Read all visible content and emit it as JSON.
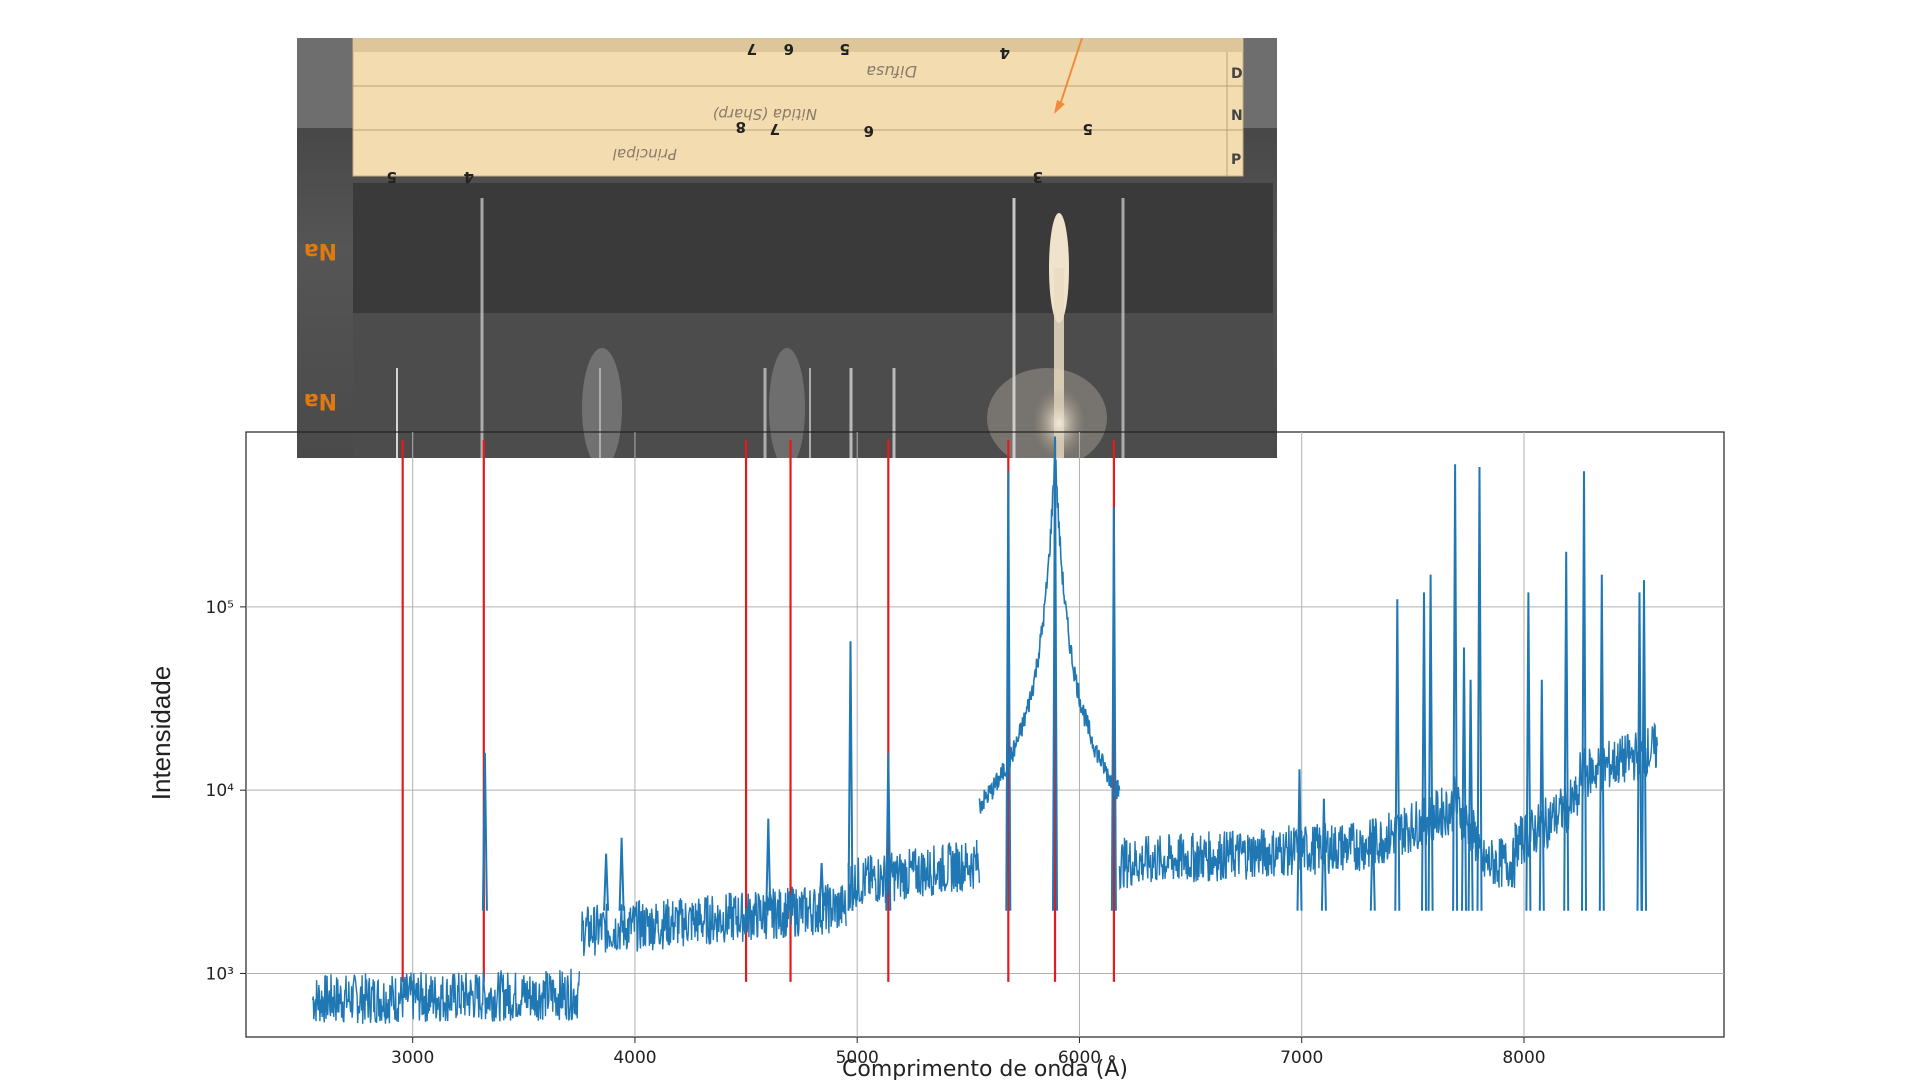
{
  "photo": {
    "plate_numbers": [
      "7",
      "6",
      "5",
      "4",
      "8",
      "7",
      "6",
      "5",
      "3",
      "5",
      "4"
    ],
    "row_letters": [
      "D",
      "N",
      "P"
    ],
    "element_labels": [
      "Na",
      "Na"
    ],
    "handwriting": [
      "Difusa",
      "Nitida (Sharp)",
      "Principal"
    ],
    "colors": {
      "plate": "#4a4a4a",
      "paper": "#f3dcb0",
      "label": "#e07a10",
      "arrow": "#f08a3c"
    }
  },
  "chart_data": {
    "type": "line",
    "title": "",
    "xlabel": "Comprimento de onda (Å)",
    "ylabel": "Intensidade",
    "xlim": [
      2250,
      8900
    ],
    "ylim": [
      450,
      900000
    ],
    "yscale": "log",
    "grid": true,
    "x_ticks": [
      3000,
      4000,
      5000,
      6000,
      7000,
      8000
    ],
    "x_tick_labels": [
      "3000",
      "4000",
      "5000",
      "6000",
      "7000",
      "8000"
    ],
    "y_ticks": [
      1000,
      10000,
      100000
    ],
    "y_tick_labels": [
      "10³",
      "10⁴",
      "10⁵"
    ],
    "series_color": "#1f77b4",
    "marker_line_color": "#e41a1c",
    "marker_lines": [
      2955,
      3320,
      4500,
      4700,
      5140,
      5680,
      5890,
      6155
    ],
    "baseline_segments": [
      {
        "x": [
          2550,
          3750
        ],
        "y": [
          720,
          770
        ]
      },
      {
        "x": [
          3760,
          4950
        ],
        "y": [
          1700,
          2300
        ]
      },
      {
        "x": [
          4960,
          5550
        ],
        "y": [
          3100,
          4000
        ]
      },
      {
        "x": [
          6180,
          7300
        ],
        "y": [
          4000,
          5000
        ]
      },
      {
        "x": [
          7300,
          7680
        ],
        "y": [
          5000,
          8000
        ]
      },
      {
        "x": [
          7680,
          7800
        ],
        "y": [
          9000,
          5000
        ]
      },
      {
        "x": [
          7800,
          7960
        ],
        "y": [
          4000,
          4000
        ]
      },
      {
        "x": [
          7960,
          8250
        ],
        "y": [
          5000,
          9000
        ]
      },
      {
        "x": [
          8250,
          8600
        ],
        "y": [
          12000,
          17000
        ]
      }
    ],
    "peaks": [
      {
        "x": 3325,
        "y": 16000
      },
      {
        "x": 3870,
        "y": 4500
      },
      {
        "x": 3940,
        "y": 5500
      },
      {
        "x": 4600,
        "y": 7000
      },
      {
        "x": 4840,
        "y": 4000
      },
      {
        "x": 4970,
        "y": 65000
      },
      {
        "x": 5140,
        "y": 16000
      },
      {
        "x": 5680,
        "y": 550000
      },
      {
        "x": 5890,
        "y": 850000
      },
      {
        "x": 6155,
        "y": 350000
      },
      {
        "x": 6990,
        "y": 13000
      },
      {
        "x": 7100,
        "y": 9000
      },
      {
        "x": 7320,
        "y": 7000
      },
      {
        "x": 7430,
        "y": 110000
      },
      {
        "x": 7550,
        "y": 120000
      },
      {
        "x": 7580,
        "y": 150000
      },
      {
        "x": 7690,
        "y": 600000
      },
      {
        "x": 7730,
        "y": 60000
      },
      {
        "x": 7760,
        "y": 40000
      },
      {
        "x": 7800,
        "y": 580000
      },
      {
        "x": 8020,
        "y": 120000
      },
      {
        "x": 8080,
        "y": 40000
      },
      {
        "x": 8190,
        "y": 200000
      },
      {
        "x": 8270,
        "y": 550000
      },
      {
        "x": 8350,
        "y": 150000
      },
      {
        "x": 8520,
        "y": 120000
      },
      {
        "x": 8540,
        "y": 140000
      }
    ]
  }
}
